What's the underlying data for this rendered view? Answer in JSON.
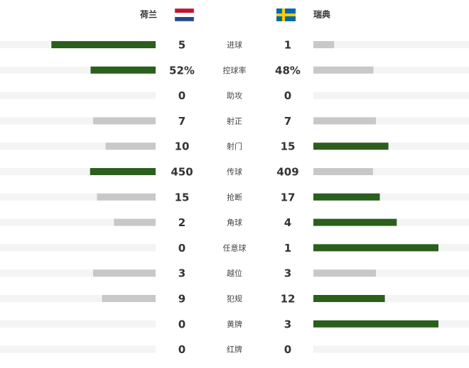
{
  "teams": {
    "home": "荷兰",
    "away": "瑞典"
  },
  "colors": {
    "leading": "#2b5f1d",
    "trailing": "#c8c8c8",
    "track": "#f4f4f4"
  },
  "stats": [
    {
      "label": "进球",
      "home": 5,
      "away": 1
    },
    {
      "label": "控球率",
      "home": 52,
      "away": 48,
      "home_label": "52%",
      "away_label": "48%"
    },
    {
      "label": "助攻",
      "home": 0,
      "away": 0
    },
    {
      "label": "射正",
      "home": 7,
      "away": 7
    },
    {
      "label": "射门",
      "home": 10,
      "away": 15
    },
    {
      "label": "传球",
      "home": 450,
      "away": 409
    },
    {
      "label": "抢断",
      "home": 15,
      "away": 17
    },
    {
      "label": "角球",
      "home": 2,
      "away": 4
    },
    {
      "label": "任意球",
      "home": 0,
      "away": 1
    },
    {
      "label": "越位",
      "home": 3,
      "away": 3
    },
    {
      "label": "犯规",
      "home": 9,
      "away": 12
    },
    {
      "label": "黄牌",
      "home": 0,
      "away": 3
    },
    {
      "label": "红牌",
      "home": 0,
      "away": 0
    }
  ]
}
